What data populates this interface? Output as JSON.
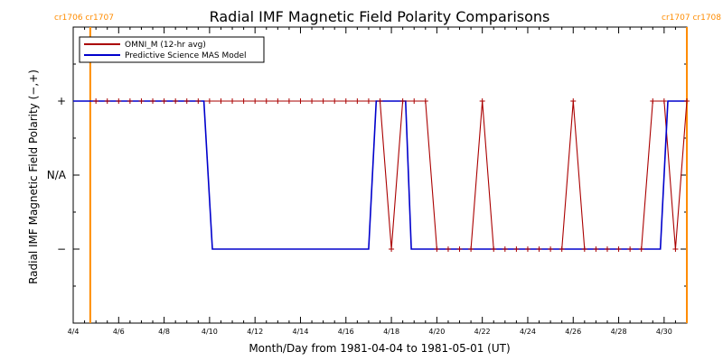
{
  "chart_data": {
    "type": "line",
    "title": "Radial IMF Magnetic Field Polarity Comparisons",
    "xlabel": "Month/Day from 1981-04-04 to 1981-05-01 (UT)",
    "ylabel": "Radial IMF Magnetic Field Polarity (−,+)",
    "xlim": [
      "1981-04-04",
      "1981-05-01"
    ],
    "ylim": [
      -2,
      2
    ],
    "x_tick_labels": [
      "4/4",
      "4/6",
      "4/8",
      "4/10",
      "4/12",
      "4/14",
      "4/16",
      "4/18",
      "4/20",
      "4/22",
      "4/24",
      "4/26",
      "4/28",
      "4/30"
    ],
    "y_ticks": [
      {
        "value": 1,
        "label": "+"
      },
      {
        "value": 0,
        "label": "N/A"
      },
      {
        "value": -1,
        "label": "−"
      }
    ],
    "legend_position": "top-left",
    "carrington_markers": [
      {
        "date": "1981-04-04T18:00",
        "left_label": "cr1706",
        "right_label": "cr1707",
        "label_side": "top-left",
        "color": "#ff8c00"
      },
      {
        "date": "1981-05-01T00:00",
        "left_label": "cr1707",
        "right_label": "cr1708",
        "label_side": "top-right",
        "color": "#ff8c00"
      }
    ],
    "series": [
      {
        "name": "OMNI_M (12-hr avg)",
        "color": "#aa0000",
        "x": [
          "1981-04-05T00:00",
          "1981-04-05T12:00",
          "1981-04-06T00:00",
          "1981-04-06T12:00",
          "1981-04-07T00:00",
          "1981-04-07T12:00",
          "1981-04-08T00:00",
          "1981-04-08T12:00",
          "1981-04-09T00:00",
          "1981-04-09T12:00",
          "1981-04-10T00:00",
          "1981-04-10T12:00",
          "1981-04-11T00:00",
          "1981-04-11T12:00",
          "1981-04-12T00:00",
          "1981-04-12T12:00",
          "1981-04-13T00:00",
          "1981-04-13T12:00",
          "1981-04-14T00:00",
          "1981-04-14T12:00",
          "1981-04-15T00:00",
          "1981-04-15T12:00",
          "1981-04-16T00:00",
          "1981-04-16T12:00",
          "1981-04-17T00:00",
          "1981-04-17T12:00",
          "1981-04-18T00:00",
          "1981-04-18T12:00",
          "1981-04-19T00:00",
          "1981-04-19T12:00",
          "1981-04-20T00:00",
          "1981-04-20T12:00",
          "1981-04-21T00:00",
          "1981-04-21T12:00",
          "1981-04-22T00:00",
          "1981-04-22T12:00",
          "1981-04-23T00:00",
          "1981-04-23T12:00",
          "1981-04-24T00:00",
          "1981-04-24T12:00",
          "1981-04-25T00:00",
          "1981-04-25T12:00",
          "1981-04-26T00:00",
          "1981-04-26T12:00",
          "1981-04-27T00:00",
          "1981-04-27T12:00",
          "1981-04-28T00:00",
          "1981-04-28T12:00",
          "1981-04-29T00:00",
          "1981-04-29T12:00",
          "1981-04-30T00:00",
          "1981-04-30T12:00",
          "1981-05-01T00:00"
        ],
        "y": [
          1,
          1,
          1,
          1,
          1,
          1,
          1,
          1,
          1,
          1,
          1,
          1,
          1,
          1,
          1,
          1,
          1,
          1,
          1,
          1,
          1,
          1,
          1,
          1,
          1,
          1,
          -1,
          1,
          1,
          1,
          -1,
          -1,
          -1,
          -1,
          1,
          -1,
          -1,
          -1,
          -1,
          -1,
          -1,
          -1,
          1,
          -1,
          -1,
          -1,
          -1,
          -1,
          -1,
          1,
          1,
          -1,
          1
        ]
      },
      {
        "name": "Predictive Science MAS Model",
        "color": "#0000cc",
        "x": [
          "1981-04-04T00:00",
          "1981-04-09T18:00",
          "1981-04-10T03:00",
          "1981-04-17T00:00",
          "1981-04-17T08:00",
          "1981-04-18T15:00",
          "1981-04-18T21:00",
          "1981-04-29T20:00",
          "1981-04-30T04:00",
          "1981-05-01T00:00"
        ],
        "y": [
          1,
          1,
          -1,
          -1,
          1,
          1,
          -1,
          -1,
          1,
          1
        ]
      }
    ]
  }
}
